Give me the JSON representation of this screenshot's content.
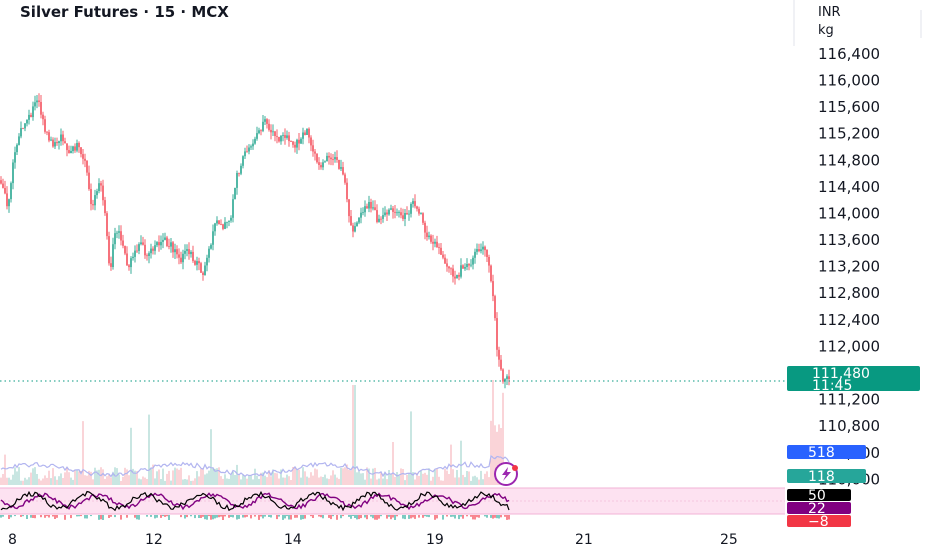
{
  "chart_data": {
    "type": "candlestick",
    "title": "Silver Futures · 15 · MCX",
    "currency": "INR",
    "unit": "kg",
    "y_ticks": [
      "116,400",
      "116,000",
      "115,600",
      "115,200",
      "114,800",
      "114,400",
      "114,000",
      "113,600",
      "113,200",
      "112,800",
      "112,400",
      "112,000",
      "111,600",
      "111,200",
      "110,800",
      "110,400",
      "110,000"
    ],
    "y_tick_values": [
      116400,
      116000,
      115600,
      115200,
      114800,
      114400,
      114000,
      113600,
      113200,
      112800,
      112400,
      112000,
      111600,
      111200,
      110800,
      110400,
      110000
    ],
    "x_ticks": [
      "8",
      "12",
      "14",
      "19",
      "21",
      "25"
    ],
    "ylim": [
      109960,
      116640
    ],
    "last_price": {
      "label": "111,480",
      "value": 111480,
      "countdown": "11:45",
      "color": "#089981"
    },
    "candle_colors": {
      "up": "#089981",
      "down": "#f23645"
    },
    "price_path": [
      [
        0,
        114500
      ],
      [
        8,
        114100
      ],
      [
        14,
        114900
      ],
      [
        22,
        115300
      ],
      [
        30,
        115450
      ],
      [
        38,
        115750
      ],
      [
        46,
        115200
      ],
      [
        54,
        115000
      ],
      [
        62,
        115150
      ],
      [
        70,
        114900
      ],
      [
        78,
        115050
      ],
      [
        86,
        114700
      ],
      [
        92,
        114100
      ],
      [
        100,
        114550
      ],
      [
        106,
        113900
      ],
      [
        110,
        113100
      ],
      [
        114,
        113650
      ],
      [
        120,
        113700
      ],
      [
        128,
        113200
      ],
      [
        134,
        113400
      ],
      [
        140,
        113550
      ],
      [
        148,
        113350
      ],
      [
        156,
        113550
      ],
      [
        164,
        113600
      ],
      [
        172,
        113500
      ],
      [
        180,
        113300
      ],
      [
        188,
        113450
      ],
      [
        196,
        113250
      ],
      [
        204,
        113100
      ],
      [
        210,
        113500
      ],
      [
        216,
        113950
      ],
      [
        222,
        113800
      ],
      [
        230,
        113850
      ],
      [
        236,
        114500
      ],
      [
        242,
        114800
      ],
      [
        250,
        115000
      ],
      [
        258,
        115200
      ],
      [
        264,
        115400
      ],
      [
        270,
        115300
      ],
      [
        278,
        115100
      ],
      [
        286,
        115200
      ],
      [
        294,
        115000
      ],
      [
        302,
        115150
      ],
      [
        308,
        115250
      ],
      [
        314,
        114900
      ],
      [
        320,
        114650
      ],
      [
        328,
        114900
      ],
      [
        336,
        114800
      ],
      [
        344,
        114600
      ],
      [
        348,
        114100
      ],
      [
        352,
        113700
      ],
      [
        356,
        113800
      ],
      [
        362,
        114000
      ],
      [
        370,
        114150
      ],
      [
        378,
        113900
      ],
      [
        386,
        114000
      ],
      [
        394,
        114050
      ],
      [
        402,
        113950
      ],
      [
        410,
        114050
      ],
      [
        414,
        114200
      ],
      [
        420,
        114000
      ],
      [
        426,
        113700
      ],
      [
        432,
        113600
      ],
      [
        438,
        113500
      ],
      [
        444,
        113250
      ],
      [
        450,
        113150
      ],
      [
        456,
        113000
      ],
      [
        462,
        113200
      ],
      [
        470,
        113250
      ],
      [
        478,
        113450
      ],
      [
        486,
        113500
      ],
      [
        490,
        113100
      ],
      [
        494,
        112600
      ],
      [
        497,
        112000
      ],
      [
        500,
        111700
      ],
      [
        503,
        111500
      ],
      [
        506,
        111550
      ],
      [
        509,
        111480
      ]
    ],
    "oscillator": {
      "values": [
        {
          "label": "50",
          "color": "#000000"
        },
        {
          "label": "22",
          "color": "#800080"
        },
        {
          "label": "−8",
          "color": "#f23645"
        }
      ]
    },
    "volume": {
      "label": "518",
      "color": "#2962ff",
      "ma_label": "118",
      "ma_color": "#26a69a"
    }
  }
}
